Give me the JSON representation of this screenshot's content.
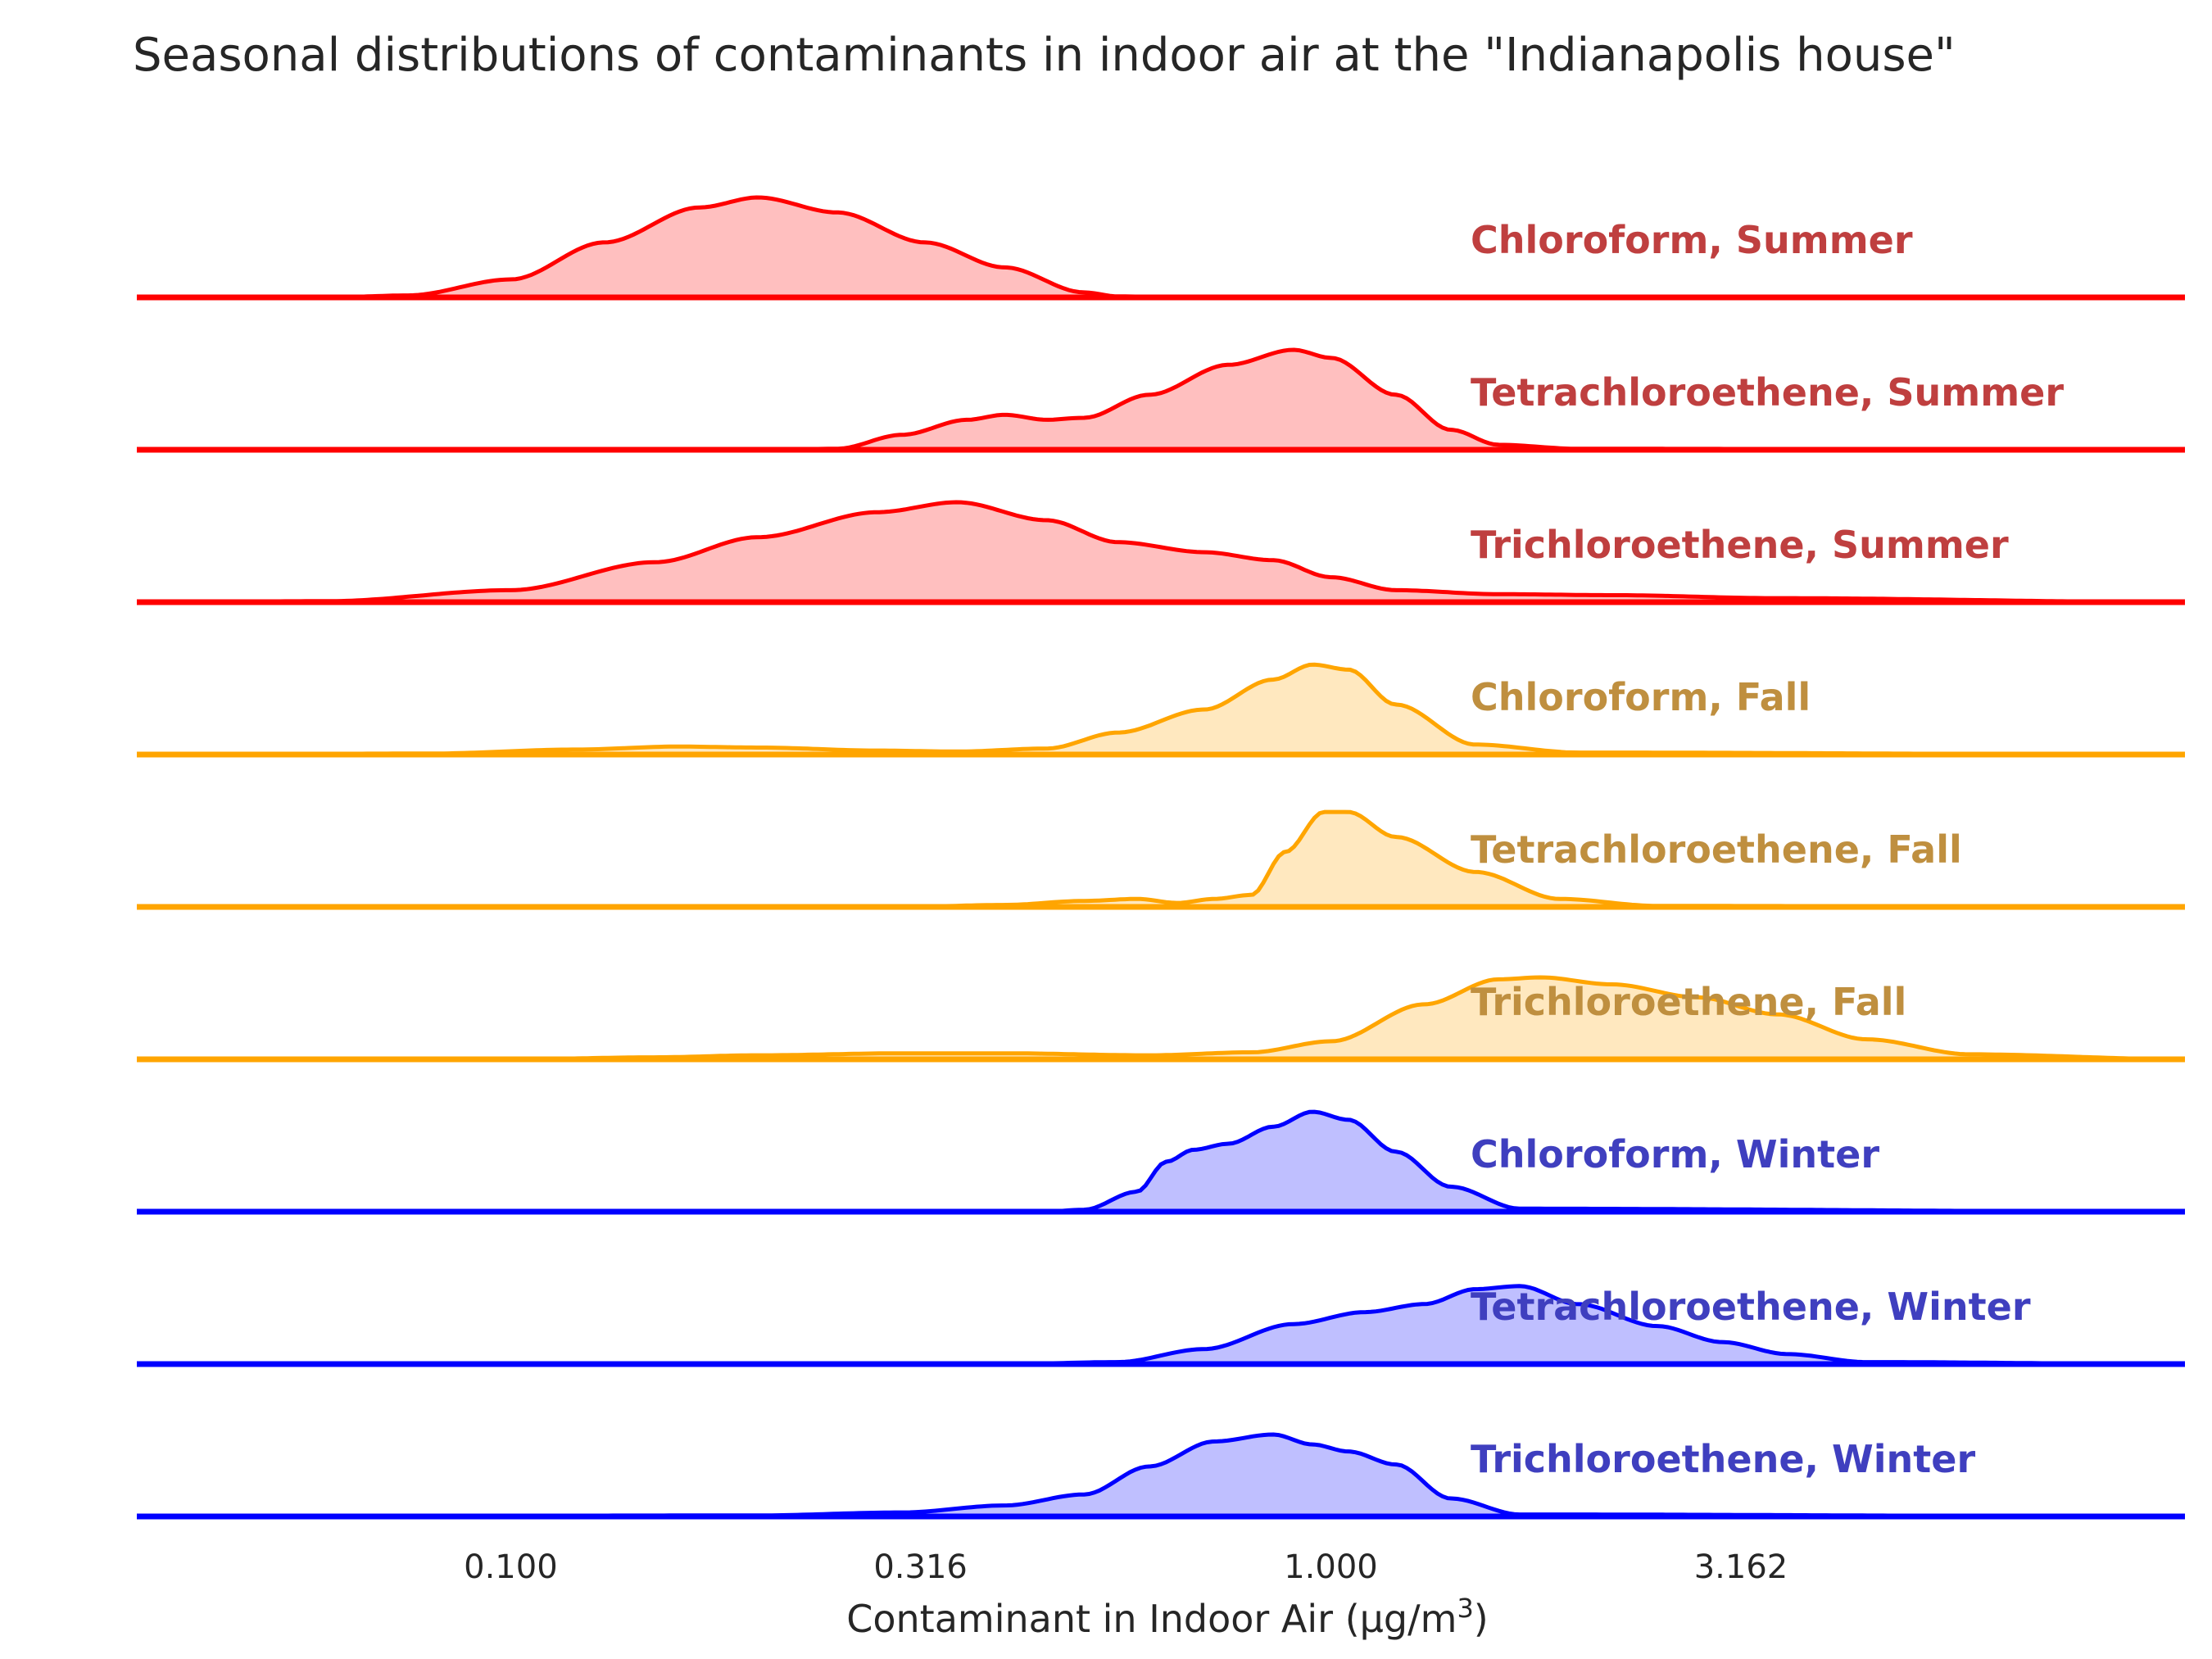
{
  "chart_data": {
    "type": "ridgeline",
    "title": "Seasonal distributions of contaminants in indoor air at the \"Indianapolis house\"",
    "xlabel": "Contaminant in Indoor Air (µg/m³)",
    "xlabel_main": "Contaminant in Indoor Air (µg/m",
    "xlabel_sup": "3",
    "xlabel_close": ")",
    "x_scale": "log10",
    "xlim": [
      0.035,
      11
    ],
    "xticks": [
      {
        "value": 0.1,
        "label": "0.100"
      },
      {
        "value": 0.316,
        "label": "0.316"
      },
      {
        "value": 1.0,
        "label": "1.000"
      },
      {
        "value": 3.162,
        "label": "3.162"
      }
    ],
    "grid": false,
    "legend": "none (inline labels at right)",
    "season_colors": {
      "Summer": {
        "line": "#ff0000",
        "fill": "#ffbfbf",
        "text": "#bf3f3f"
      },
      "Fall": {
        "line": "#ffa500",
        "fill": "#ffe8bf",
        "text": "#bf8f3f"
      },
      "Winter": {
        "line": "#0000ff",
        "fill": "#bfbfff",
        "text": "#3f3fbf"
      }
    },
    "series": [
      {
        "name": "Chloroform, Summer",
        "season": "Summer",
        "x": [
          0.035,
          0.06,
          0.075,
          0.1,
          0.13,
          0.17,
          0.2,
          0.25,
          0.32,
          0.4,
          0.5,
          0.55,
          0.65,
          1.0,
          3.0,
          11
        ],
        "y": [
          0,
          0,
          0.02,
          0.18,
          0.55,
          0.9,
          1.0,
          0.85,
          0.55,
          0.3,
          0.05,
          0.01,
          0,
          0,
          0,
          0
        ]
      },
      {
        "name": "Tetrachloroethene, Summer",
        "season": "Summer",
        "x": [
          0.035,
          0.2,
          0.25,
          0.3,
          0.36,
          0.4,
          0.45,
          0.5,
          0.6,
          0.75,
          0.9,
          1.0,
          1.2,
          1.4,
          1.6,
          2.0,
          11
        ],
        "y": [
          0,
          0,
          0.01,
          0.15,
          0.3,
          0.35,
          0.3,
          0.32,
          0.55,
          0.85,
          1.0,
          0.92,
          0.55,
          0.2,
          0.05,
          0.01,
          0
        ]
      },
      {
        "name": "Trichloroethene, Summer",
        "season": "Summer",
        "x": [
          0.035,
          0.06,
          0.1,
          0.15,
          0.2,
          0.28,
          0.35,
          0.45,
          0.55,
          0.7,
          0.85,
          1.0,
          1.2,
          1.6,
          2.2,
          3.5,
          11
        ],
        "y": [
          0,
          0.01,
          0.12,
          0.4,
          0.65,
          0.9,
          1.0,
          0.82,
          0.6,
          0.5,
          0.42,
          0.25,
          0.12,
          0.08,
          0.07,
          0.04,
          0
        ]
      },
      {
        "name": "Chloroform, Fall",
        "season": "Fall",
        "x": [
          0.035,
          0.08,
          0.12,
          0.16,
          0.2,
          0.28,
          0.35,
          0.45,
          0.55,
          0.7,
          0.85,
          0.95,
          1.05,
          1.2,
          1.5,
          2.0,
          11
        ],
        "y": [
          0,
          0.01,
          0.05,
          0.08,
          0.07,
          0.04,
          0.03,
          0.06,
          0.22,
          0.45,
          0.75,
          0.9,
          0.85,
          0.5,
          0.1,
          0.02,
          0
        ]
      },
      {
        "name": "Tetrachloroethene, Fall",
        "season": "Fall",
        "x": [
          0.035,
          0.3,
          0.4,
          0.5,
          0.58,
          0.65,
          0.72,
          0.8,
          0.88,
          0.98,
          1.05,
          1.2,
          1.5,
          1.9,
          2.5,
          11
        ],
        "y": [
          0,
          0,
          0.02,
          0.06,
          0.08,
          0.04,
          0.08,
          0.12,
          0.55,
          0.95,
          0.95,
          0.7,
          0.35,
          0.08,
          0.01,
          0
        ]
      },
      {
        "name": "Trichloroethene, Fall",
        "season": "Fall",
        "x": [
          0.035,
          0.1,
          0.15,
          0.2,
          0.3,
          0.4,
          0.6,
          0.8,
          1.0,
          1.3,
          1.6,
          1.8,
          2.2,
          2.8,
          3.5,
          4.5,
          6,
          11
        ],
        "y": [
          0,
          0,
          0.02,
          0.04,
          0.06,
          0.06,
          0.04,
          0.07,
          0.18,
          0.55,
          0.8,
          0.82,
          0.75,
          0.62,
          0.45,
          0.2,
          0.05,
          0
        ]
      },
      {
        "name": "Chloroform, Winter",
        "season": "Winter",
        "x": [
          0.035,
          0.45,
          0.5,
          0.58,
          0.63,
          0.68,
          0.75,
          0.85,
          0.95,
          1.05,
          1.2,
          1.4,
          1.7,
          11
        ],
        "y": [
          0,
          0,
          0.02,
          0.2,
          0.5,
          0.62,
          0.68,
          0.85,
          1.0,
          0.92,
          0.6,
          0.25,
          0.03,
          0
        ]
      },
      {
        "name": "Tetrachloroethene, Winter",
        "season": "Winter",
        "x": [
          0.035,
          0.4,
          0.55,
          0.7,
          0.9,
          1.1,
          1.3,
          1.5,
          1.7,
          2.0,
          2.5,
          3.0,
          3.6,
          4.5,
          11
        ],
        "y": [
          0,
          0,
          0.02,
          0.15,
          0.4,
          0.52,
          0.6,
          0.75,
          0.78,
          0.6,
          0.38,
          0.22,
          0.1,
          0.02,
          0
        ]
      },
      {
        "name": "Trichloroethene, Winter",
        "season": "Winter",
        "x": [
          0.035,
          0.2,
          0.3,
          0.4,
          0.5,
          0.6,
          0.72,
          0.85,
          0.95,
          1.05,
          1.2,
          1.4,
          1.7,
          11
        ],
        "y": [
          0,
          0.01,
          0.04,
          0.11,
          0.22,
          0.5,
          0.75,
          0.82,
          0.72,
          0.65,
          0.52,
          0.18,
          0.02,
          0
        ]
      }
    ]
  }
}
